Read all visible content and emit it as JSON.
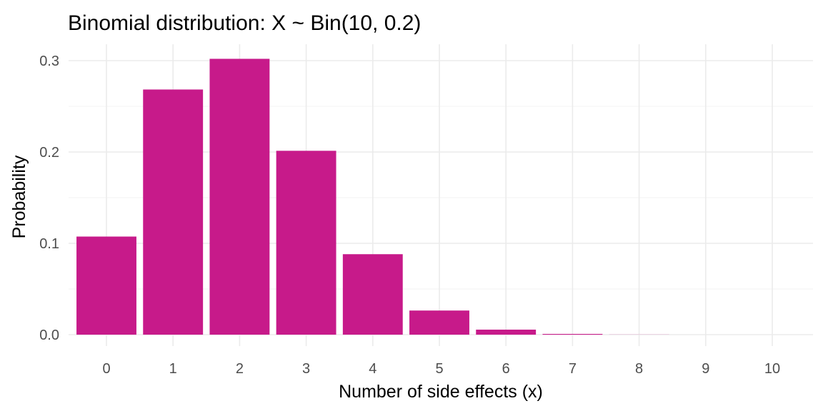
{
  "chart_data": {
    "type": "bar",
    "title": "Binomial distribution: X ~ Bin(10, 0.2)",
    "xlabel": "Number of side effects (x)",
    "ylabel": "Probability",
    "categories": [
      "0",
      "1",
      "2",
      "3",
      "4",
      "5",
      "6",
      "7",
      "8",
      "9",
      "10"
    ],
    "values": [
      0.1074,
      0.2684,
      0.302,
      0.2013,
      0.0881,
      0.0264,
      0.0055,
      0.0008,
      0.0001,
      0.0,
      0.0
    ],
    "ylim": [
      0,
      0.3
    ],
    "yticks": [
      "0.0",
      "0.1",
      "0.2",
      "0.3"
    ],
    "ytick_values": [
      0,
      0.1,
      0.2,
      0.3
    ],
    "bar_color": "#C71A8A",
    "grid": true,
    "legend": "none"
  }
}
